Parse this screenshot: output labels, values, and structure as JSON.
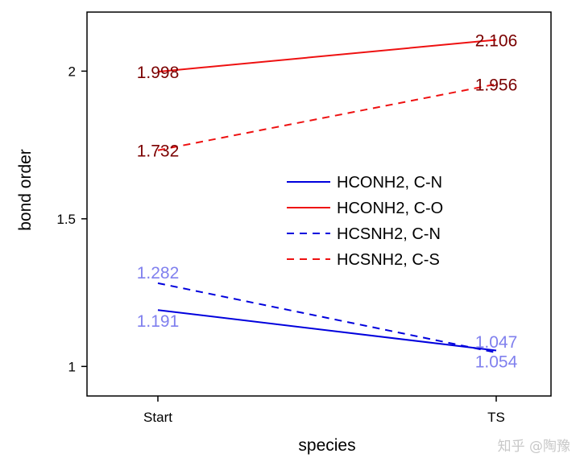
{
  "chart_data": {
    "type": "line",
    "title": "",
    "xlabel": "species",
    "ylabel": "bond order",
    "categories": [
      "Start",
      "TS"
    ],
    "ylim": [
      0.9,
      2.2
    ],
    "yticks": [
      1,
      1.5,
      2
    ],
    "ytick_labels": [
      "1",
      "1.5",
      "2"
    ],
    "grid": false,
    "legend_position": "center-right",
    "series": [
      {
        "name": "HCONH2, C-N",
        "values": [
          1.191,
          1.054
        ],
        "labels": [
          "1.191",
          "1.054"
        ],
        "color": "#0000dd",
        "label_color": "#8080ee",
        "dash": "solid"
      },
      {
        "name": "HCONH2, C-O",
        "values": [
          1.998,
          2.106
        ],
        "labels": [
          "1.998",
          "2.106"
        ],
        "color": "#ee1111",
        "label_color": "#7a0000",
        "dash": "dashed_no"
      },
      {
        "name": "HCSNH2, C-N",
        "values": [
          1.282,
          1.047
        ],
        "labels": [
          "1.282",
          "1.047"
        ],
        "color": "#0000dd",
        "label_color": "#8080ee",
        "dash": "dashed"
      },
      {
        "name": "HCSNH2, C-S",
        "values": [
          1.732,
          1.956
        ],
        "labels": [
          "1.732",
          "1.956"
        ],
        "color": "#ee1111",
        "label_color": "#7a0000",
        "dash": "dashed"
      }
    ]
  },
  "watermark": "知乎 @陶豫"
}
